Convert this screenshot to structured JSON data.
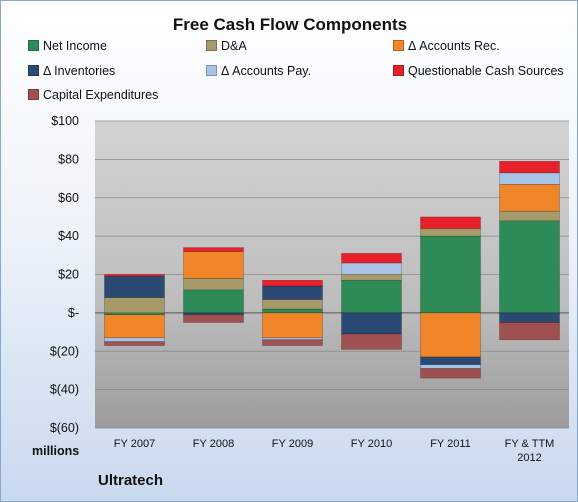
{
  "chart_data": {
    "type": "bar",
    "stacked": true,
    "title": "Free Cash Flow Components",
    "units_label": "millions",
    "brand": "Ultratech",
    "categories": [
      "FY 2007",
      "FY 2008",
      "FY 2009",
      "FY 2010",
      "FY 2011",
      "FY & TTM\n2012"
    ],
    "ylim": [
      -60,
      100
    ],
    "yticks": [
      100,
      80,
      60,
      40,
      20,
      0,
      -20,
      -40,
      -60
    ],
    "ytick_labels": [
      "$100",
      "$80",
      "$60",
      "$40",
      "$20",
      "$-",
      "$(20)",
      "$(40)",
      "$(60)"
    ],
    "grid": true,
    "legend_position": "top",
    "series": [
      {
        "name": "Net Income",
        "color": "#2e8b57",
        "values": [
          -1,
          12,
          2,
          17,
          40,
          48
        ]
      },
      {
        "name": "D&A",
        "color": "#a69a6a",
        "values": [
          8,
          6,
          5,
          3,
          4,
          5
        ]
      },
      {
        "name": "Δ Accounts Rec.",
        "color": "#f0852a",
        "values": [
          -12,
          14,
          -13,
          0,
          -23,
          14
        ]
      },
      {
        "name": "Δ Inventories",
        "color": "#2b4a73",
        "values": [
          11,
          -1,
          7,
          -11,
          -4,
          -5
        ]
      },
      {
        "name": "Δ Accounts Pay.",
        "color": "#a8c3e6",
        "values": [
          -2,
          0,
          -1,
          6,
          -2,
          6
        ]
      },
      {
        "name": "Questionable Cash Sources",
        "color": "#e8202a",
        "values": [
          1,
          2,
          3,
          5,
          6,
          6
        ]
      },
      {
        "name": "Capital Expenditures",
        "color": "#a05050",
        "values": [
          -2,
          -4,
          -3,
          -8,
          -5,
          -9
        ]
      }
    ]
  }
}
